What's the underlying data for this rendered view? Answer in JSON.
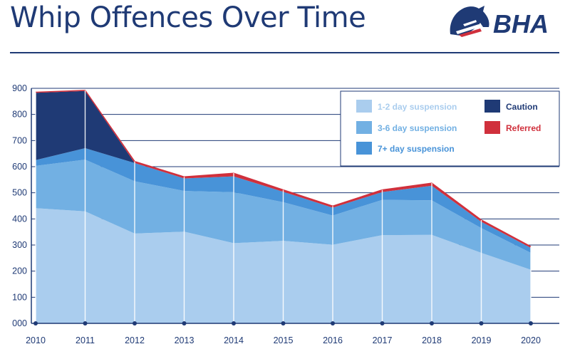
{
  "header": {
    "title": "Whip Offences Over Time",
    "logo_text": "BHA",
    "colors": {
      "navy": "#1f3a75",
      "red": "#d0303c"
    }
  },
  "chart_data": {
    "type": "area",
    "stacked": true,
    "title": "Whip Offences Over Time",
    "xlabel": "",
    "ylabel": "",
    "ylim": [
      0,
      900
    ],
    "yticks": [
      "000",
      "100",
      "200",
      "300",
      "400",
      "500",
      "600",
      "700",
      "800",
      "900"
    ],
    "x": [
      "2010",
      "2011",
      "2012",
      "2013",
      "2014",
      "2015",
      "2016",
      "2017",
      "2018",
      "2019",
      "2020"
    ],
    "series": [
      {
        "name": "1-2 day suspension",
        "color": "#aacdee",
        "values": [
          441,
          429,
          344,
          351,
          307,
          316,
          301,
          338,
          339,
          270,
          205
        ]
      },
      {
        "name": "3-6 day suspension",
        "color": "#72b0e3",
        "values": [
          162,
          198,
          200,
          156,
          195,
          148,
          112,
          135,
          132,
          95,
          65
        ]
      },
      {
        "name": "7+ day suspension",
        "color": "#4893d8",
        "values": [
          22,
          44,
          70,
          48,
          61,
          40,
          30,
          30,
          56,
          24,
          19
        ]
      },
      {
        "name": "Caution",
        "color": "#1f3a75",
        "values": [
          258,
          219,
          0,
          0,
          0,
          0,
          0,
          0,
          0,
          0,
          0
        ]
      },
      {
        "name": "Referred",
        "color": "#d0303c",
        "values": [
          2,
          2,
          6,
          6,
          12,
          7,
          6,
          8,
          10,
          7,
          5
        ]
      }
    ],
    "grid": "horizontal",
    "legend": "top-right",
    "legend_layout": [
      [
        "1-2 day suspension",
        "Caution"
      ],
      [
        "3-6 day suspension",
        "Referred"
      ],
      [
        "7+ day suspension"
      ]
    ]
  }
}
